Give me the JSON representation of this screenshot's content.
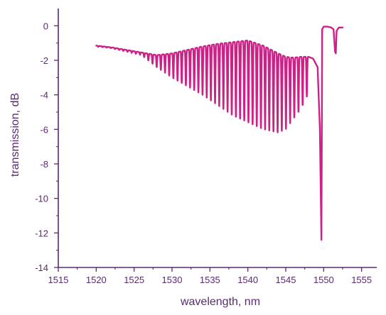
{
  "chart_data": {
    "type": "line",
    "title": "",
    "xlabel": "wavelength, nm",
    "ylabel": "transmission, dB",
    "xlim": [
      1515,
      1557
    ],
    "ylim": [
      -14,
      1
    ],
    "xticks": [
      1515,
      1520,
      1525,
      1530,
      1535,
      1540,
      1545,
      1550,
      1555
    ],
    "yticks": [
      0,
      -2,
      -4,
      -6,
      -8,
      -10,
      -12,
      -14
    ],
    "grid": false,
    "legend": "none",
    "axis_color": "#5a2a72",
    "series": [
      {
        "color": "#cc2288",
        "envelope": {
          "x": [
            1520,
            1522,
            1524,
            1526,
            1528,
            1530,
            1532,
            1534,
            1536,
            1538,
            1540,
            1542,
            1544,
            1545,
            1546,
            1547,
            1548
          ],
          "upper": [
            -1.15,
            -1.25,
            -1.4,
            -1.55,
            -1.7,
            -1.6,
            -1.4,
            -1.2,
            -1.05,
            -0.95,
            -0.85,
            -1.15,
            -1.6,
            -1.8,
            -1.85,
            -1.8,
            -1.8
          ],
          "lower": [
            -1.2,
            -1.3,
            -1.5,
            -1.7,
            -2.4,
            -3.0,
            -3.5,
            -4.0,
            -4.6,
            -5.2,
            -5.6,
            -6.0,
            -6.2,
            -6.0,
            -5.4,
            -4.8,
            -3.9
          ]
        },
        "fringe_period_nm": 0.55,
        "dip": {
          "x": 1549.7,
          "y": -12.4
        },
        "tail": {
          "x": [
            1549.8,
            1550.0,
            1550.5,
            1551.0,
            1551.3,
            1551.5,
            1551.6,
            1551.7,
            1552.0,
            1552.5
          ],
          "y": [
            -0.2,
            -0.05,
            -0.05,
            -0.1,
            -0.2,
            -1.5,
            -1.6,
            -0.3,
            -0.1,
            -0.1
          ]
        }
      }
    ]
  }
}
